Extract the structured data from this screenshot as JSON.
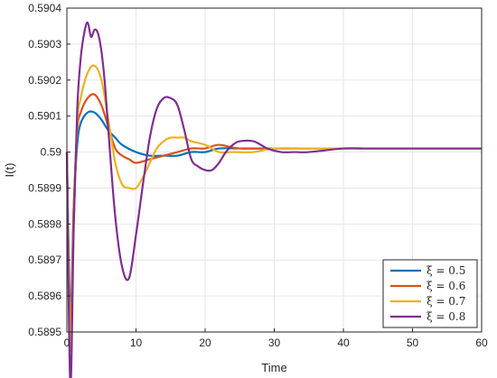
{
  "chart_data": {
    "type": "line",
    "xlabel": "Time",
    "ylabel": "I(t)",
    "xlim": [
      0,
      60
    ],
    "ylim": [
      0.5895,
      0.5904
    ],
    "xticks": [
      0,
      10,
      20,
      30,
      40,
      50,
      60
    ],
    "yticks": [
      0.5895,
      0.5896,
      0.5897,
      0.5898,
      0.5899,
      0.59,
      0.5901,
      0.5902,
      0.5903,
      0.5904
    ],
    "xtick_labels": [
      "0",
      "10",
      "20",
      "30",
      "40",
      "50",
      "60"
    ],
    "ytick_labels": [
      "0.5895",
      "0.5896",
      "0.5897",
      "0.5898",
      "0.5899",
      "0.59",
      "0.5901",
      "0.5902",
      "0.5903",
      "0.5904"
    ],
    "grid": true,
    "legend_position": "bottom-right",
    "series": [
      {
        "name": "ξ = 0.5",
        "color": "#0072BD",
        "x": [
          0,
          0.5,
          1,
          1.5,
          2,
          3,
          4,
          5,
          6,
          7,
          8,
          10,
          12,
          14,
          16,
          18,
          20,
          22,
          25,
          30,
          35,
          40,
          45,
          50,
          55,
          60
        ],
        "y": [
          0.59,
          0.58955,
          0.58985,
          0.59002,
          0.59008,
          0.59011,
          0.59011,
          0.59009,
          0.59006,
          0.59004,
          0.59002,
          0.59,
          0.58999,
          0.58999,
          0.58999,
          0.59,
          0.59,
          0.59001,
          0.59001,
          0.59001,
          0.59001,
          0.59001,
          0.59001,
          0.59001,
          0.59001,
          0.59001
        ]
      },
      {
        "name": "ξ = 0.6",
        "color": "#D95319",
        "x": [
          0,
          0.5,
          1,
          1.5,
          2,
          3,
          4,
          5,
          6,
          7,
          8,
          9,
          10,
          12,
          14,
          16,
          18,
          20,
          22,
          25,
          30,
          35,
          40,
          45,
          50,
          55,
          60
        ],
        "y": [
          0.59,
          0.5895,
          0.58985,
          0.59006,
          0.59011,
          0.59015,
          0.59016,
          0.59013,
          0.59007,
          0.59001,
          0.58999,
          0.58998,
          0.58997,
          0.58998,
          0.58999,
          0.59,
          0.59001,
          0.59001,
          0.59002,
          0.59001,
          0.59001,
          0.59001,
          0.59001,
          0.59001,
          0.59001,
          0.59001,
          0.59001
        ]
      },
      {
        "name": "ξ = 0.7",
        "color": "#EDB120",
        "x": [
          0,
          0.5,
          1,
          1.5,
          2,
          3,
          4,
          5,
          6,
          7,
          8,
          9,
          10,
          11,
          12,
          13,
          14,
          15,
          16,
          17,
          18,
          20,
          22,
          24,
          27,
          30,
          35,
          40,
          45,
          50,
          55,
          60
        ],
        "y": [
          0.59,
          0.58945,
          0.5898,
          0.59008,
          0.59015,
          0.59022,
          0.59024,
          0.5902,
          0.59009,
          0.58997,
          0.58991,
          0.5899,
          0.5899,
          0.58993,
          0.58997,
          0.59001,
          0.59003,
          0.59004,
          0.59004,
          0.59004,
          0.59003,
          0.59002,
          0.59,
          0.59,
          0.59,
          0.59001,
          0.59001,
          0.59001,
          0.59001,
          0.59001,
          0.59001,
          0.59001
        ]
      },
      {
        "name": "ξ = 0.8",
        "color": "#7E2F8E",
        "x": [
          0,
          0.5,
          1,
          1.5,
          2,
          2.5,
          3,
          3.5,
          4,
          4.5,
          5,
          5.5,
          6,
          7,
          8,
          9,
          10,
          11,
          12,
          13,
          14,
          15,
          16,
          17,
          18,
          19,
          20,
          21,
          22,
          23,
          24,
          25,
          27,
          29,
          31,
          33,
          35,
          40,
          43,
          47,
          50,
          55,
          60
        ],
        "y": [
          0.59,
          0.58935,
          0.5898,
          0.59012,
          0.59026,
          0.59033,
          0.59036,
          0.59032,
          0.59034,
          0.59033,
          0.59028,
          0.59019,
          0.59006,
          0.58982,
          0.58968,
          0.58965,
          0.58977,
          0.58991,
          0.59004,
          0.59012,
          0.59015,
          0.59015,
          0.59013,
          0.59006,
          0.58998,
          0.58996,
          0.58995,
          0.58995,
          0.58997,
          0.59,
          0.59002,
          0.59003,
          0.59003,
          0.59001,
          0.59,
          0.59,
          0.59,
          0.59001,
          0.59001,
          0.59001,
          0.59001,
          0.59001,
          0.59001
        ]
      }
    ]
  }
}
